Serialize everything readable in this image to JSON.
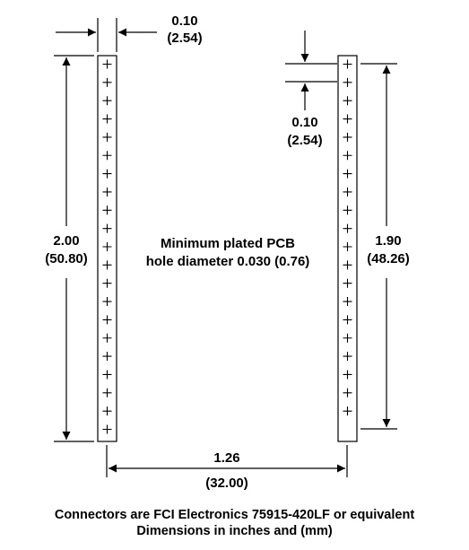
{
  "dimensions": {
    "pitch_top": {
      "inches": "0.10",
      "mm": "(2.54)"
    },
    "pitch_right": {
      "inches": "0.10",
      "mm": "(2.54)"
    },
    "left_length": {
      "inches": "2.00",
      "mm": "(50.80)"
    },
    "right_length": {
      "inches": "1.90",
      "mm": "(48.26)"
    },
    "spacing": {
      "inches": "1.26",
      "mm": "(32.00)"
    }
  },
  "note": {
    "line1": "Minimum plated PCB",
    "line2": "hole diameter 0.030 (0.76)"
  },
  "connectors": {
    "left_pins": 21,
    "right_pins": 20
  },
  "footer": {
    "line1": "Connectors are FCI Electronics 75915-420LF or equivalent",
    "line2": "Dimensions in inches and (mm)"
  }
}
